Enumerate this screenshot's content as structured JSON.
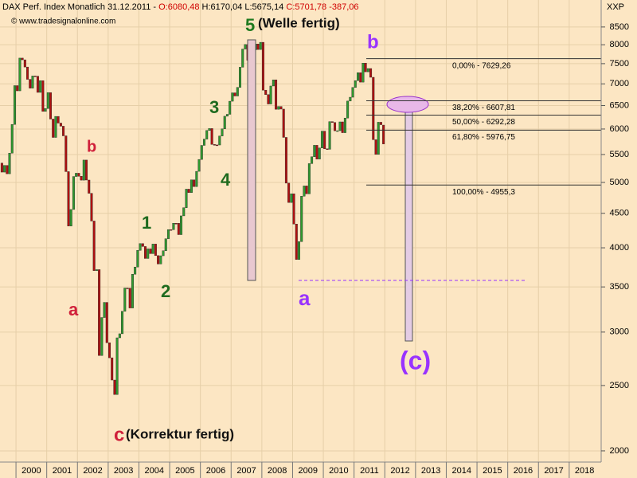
{
  "chart_data": {
    "type": "candlestick",
    "title": "DAX Perf. Index Monatlich",
    "date": "31.12.2011 -",
    "quote_open": "O:6080,48",
    "quote_hl": "H:6170,04 L:5675,14",
    "quote_close": "C:5701,78 -387,06",
    "watermark": "© www.tradesignalonline.com",
    "axis_label": "XXP",
    "log_scale": true,
    "grid": true,
    "up_color": "#2f9a2f",
    "down_color": "#b01010",
    "ylim": [
      1925,
      9320
    ],
    "yticks": [
      2000,
      2500,
      3000,
      3500,
      4000,
      4500,
      5000,
      5500,
      6000,
      6500,
      7000,
      7500,
      8000,
      8500
    ],
    "xlim": [
      1999.48,
      2019.04
    ],
    "xticks": [
      2000,
      2001,
      2002,
      2003,
      2004,
      2005,
      2006,
      2007,
      2008,
      2009,
      2010,
      2011,
      2012,
      2013,
      2014,
      2015,
      2016,
      2017,
      2018
    ],
    "open": [
      5342,
      5179,
      5299,
      5150,
      5525,
      6095,
      6958,
      6835,
      7644,
      7599,
      7414,
      7109,
      6898,
      7191,
      7186,
      6799,
      7077,
      6372,
      6434,
      6795,
      6208,
      5830,
      6264,
      6123,
      6058,
      5862,
      5188,
      4308,
      4559,
      5102,
      5160,
      5107,
      5039,
      5397,
      5041,
      4818,
      4383,
      3700,
      3713,
      2769,
      3153,
      3320,
      2893,
      2748,
      2547,
      2424,
      2942,
      2983,
      3221,
      3487,
      3485,
      3257,
      3655,
      3746,
      3965,
      4058,
      4018,
      3857,
      3985,
      3921,
      4052,
      3895,
      3785,
      3893,
      3960,
      4126,
      4256,
      4255,
      4350,
      4349,
      4184,
      4461,
      4586,
      4887,
      4830,
      5044,
      4929,
      5193,
      5408,
      5674,
      5797,
      5970,
      6010,
      5692,
      5683,
      5681,
      5859,
      6004,
      6268,
      6309,
      6597,
      6789,
      6716,
      6917,
      7409,
      7883,
      8007,
      7584,
      7638,
      7862,
      8020,
      7871,
      8067,
      6851,
      6748,
      6535,
      6949,
      7097,
      6418,
      6480,
      6422,
      5831,
      4988,
      4669,
      4810,
      4338,
      3844,
      4085,
      4770,
      4941,
      4809,
      5332,
      5458,
      5676,
      5415,
      5625,
      5957,
      5608,
      5599,
      6154,
      6136,
      5964,
      5966,
      6148,
      5925,
      6229,
      6601,
      6688,
      6914,
      7077,
      7273,
      7041,
      7514,
      7294,
      7376,
      7159,
      5785,
      5502,
      6141,
      6080.48
    ],
    "close": [
      5179,
      5299,
      5150,
      5525,
      6095,
      6958,
      6835,
      7644,
      7599,
      7414,
      7109,
      6898,
      7191,
      7186,
      6799,
      7077,
      6372,
      6434,
      6795,
      6208,
      5830,
      6264,
      6123,
      6058,
      5862,
      5188,
      4308,
      4559,
      5102,
      5160,
      5107,
      5039,
      5397,
      5041,
      4818,
      4383,
      3700,
      3713,
      2769,
      3153,
      3320,
      2893,
      2748,
      2547,
      2424,
      2942,
      2983,
      3221,
      3487,
      3485,
      3257,
      3655,
      3746,
      3965,
      4058,
      4018,
      3857,
      3985,
      3921,
      4052,
      3895,
      3785,
      3893,
      3960,
      4126,
      4256,
      4255,
      4350,
      4349,
      4184,
      4461,
      4586,
      4887,
      4830,
      5044,
      4929,
      5193,
      5408,
      5674,
      5797,
      5970,
      6010,
      5692,
      5683,
      5681,
      5859,
      6004,
      6268,
      6309,
      6597,
      6789,
      6716,
      6917,
      7409,
      7883,
      8007,
      7584,
      7638,
      7862,
      8020,
      7871,
      8067,
      6851,
      6748,
      6535,
      6949,
      7097,
      6418,
      6480,
      6422,
      5831,
      4988,
      4669,
      4810,
      4338,
      3844,
      4085,
      4770,
      4941,
      4809,
      5332,
      5458,
      5676,
      5415,
      5625,
      5957,
      5608,
      5599,
      6154,
      6136,
      5964,
      5966,
      6148,
      5925,
      6229,
      6601,
      6688,
      6914,
      7077,
      7273,
      7041,
      7514,
      7294,
      7376,
      7159,
      5785,
      5502,
      6141,
      6089,
      5701.78
    ],
    "fib_levels": [
      {
        "value": 7629.26,
        "label": "0,00% - 7629,26"
      },
      {
        "value": 6607.81,
        "label": "38,20% - 6607,81"
      },
      {
        "value": 6292.28,
        "label": "50,00% - 6292,28"
      },
      {
        "value": 5976.75,
        "label": "61,80% - 5976,75"
      },
      {
        "value": 4955.3,
        "label": "100,00% - 4955,3"
      }
    ],
    "annotations": [
      "5",
      "(Welle fertig)",
      "b",
      "a",
      "(c)",
      "a",
      "b",
      "c",
      "(Korrektur fertig)",
      "1",
      "2",
      "3",
      "4"
    ]
  }
}
